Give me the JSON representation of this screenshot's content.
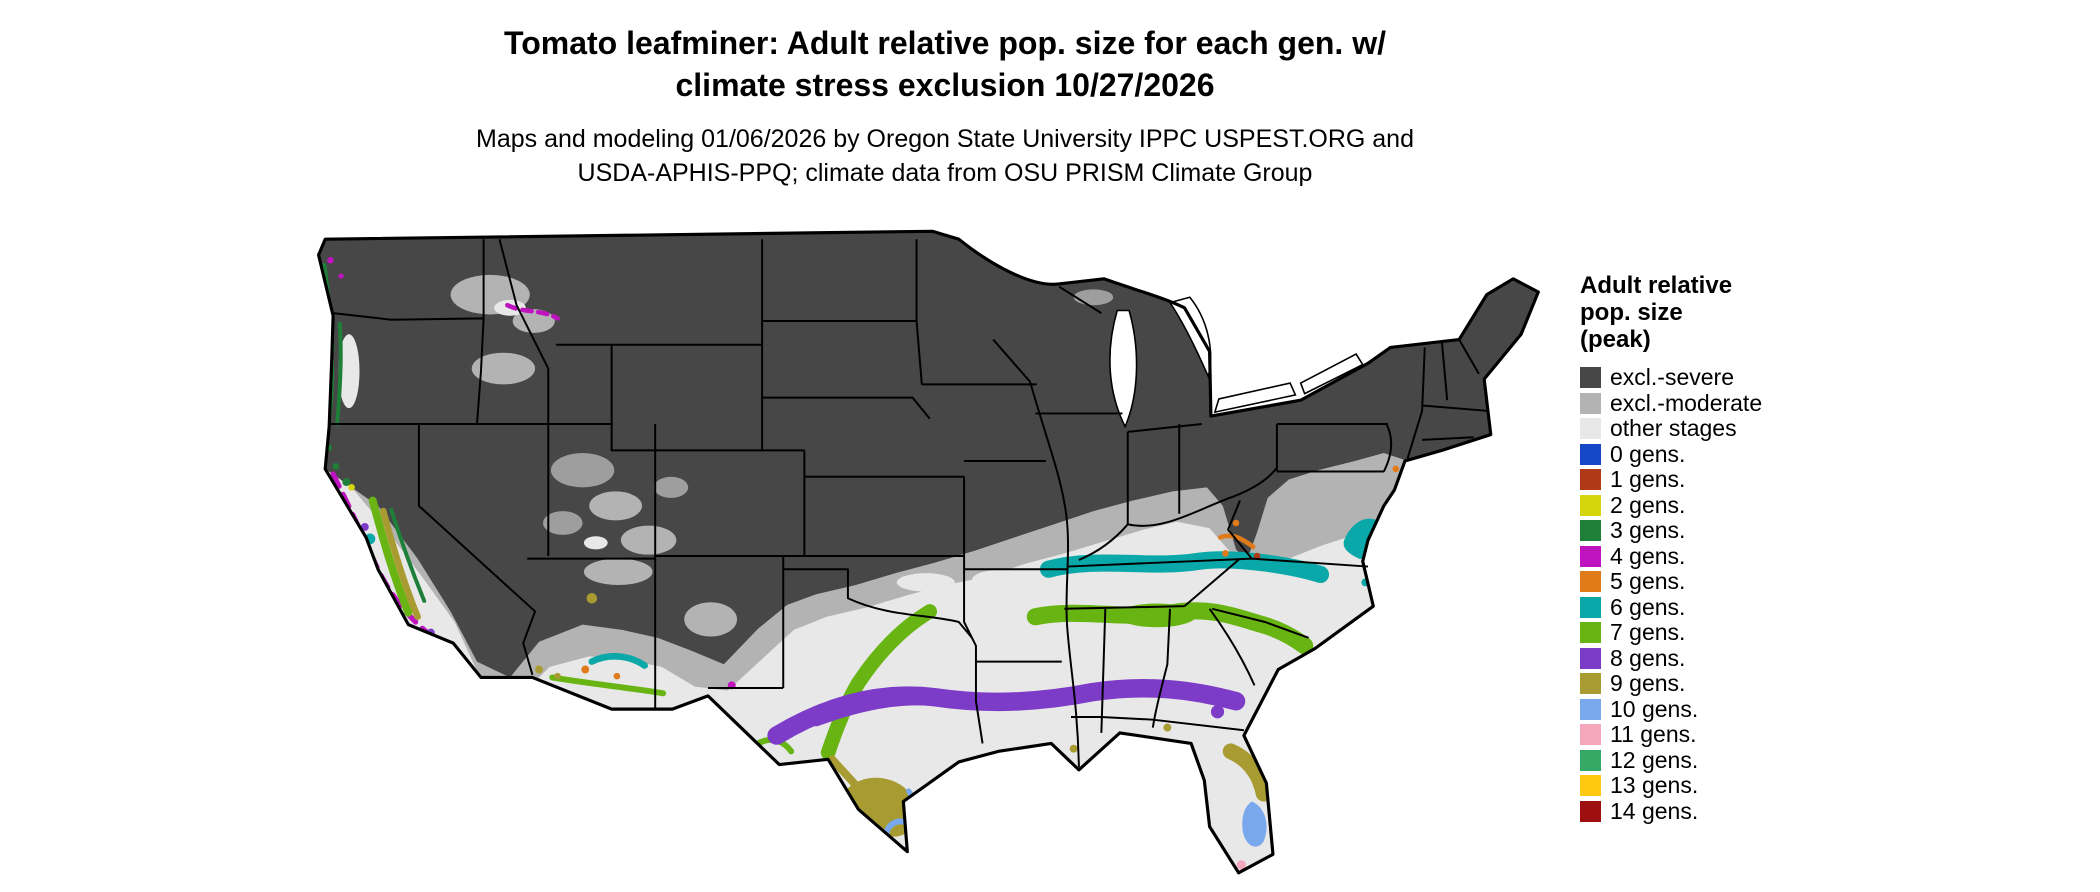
{
  "header": {
    "title_line1": "Tomato leafminer: Adult relative pop. size for each gen. w/",
    "title_line2": "climate stress exclusion 10/27/2026",
    "subtitle_line1": "Maps and modeling 01/06/2026 by Oregon State University IPPC USPEST.ORG and",
    "subtitle_line2": "USDA-APHIS-PPQ; climate data from OSU PRISM Climate Group"
  },
  "legend": {
    "title_line1": "Adult relative",
    "title_line2": "pop. size",
    "title_line3": "(peak)",
    "items": [
      {
        "key": "exclsevere",
        "label": "excl.-severe",
        "color": "#474747"
      },
      {
        "key": "exclmoderate",
        "label": "excl.-moderate",
        "color": "#b3b3b3"
      },
      {
        "key": "other",
        "label": "other stages",
        "color": "#e8e8e8"
      },
      {
        "key": "gen0",
        "label": "0 gens.",
        "color": "#1547c8"
      },
      {
        "key": "gen1",
        "label": "1 gens.",
        "color": "#b03a17"
      },
      {
        "key": "gen2",
        "label": "2 gens.",
        "color": "#d6d60e"
      },
      {
        "key": "gen3",
        "label": "3 gens.",
        "color": "#1e8038"
      },
      {
        "key": "gen4",
        "label": "4 gens.",
        "color": "#c013c0"
      },
      {
        "key": "gen5",
        "label": "5 gens.",
        "color": "#e07b1a"
      },
      {
        "key": "gen6",
        "label": "6 gens.",
        "color": "#0aa8a8"
      },
      {
        "key": "gen7",
        "label": "7 gens.",
        "color": "#67b412"
      },
      {
        "key": "gen8",
        "label": "8 gens.",
        "color": "#7d3cc8"
      },
      {
        "key": "gen9",
        "label": "9 gens.",
        "color": "#a89b31"
      },
      {
        "key": "gen10",
        "label": "10 gens.",
        "color": "#79a9ec"
      },
      {
        "key": "gen11",
        "label": "11 gens.",
        "color": "#f4a6bb"
      },
      {
        "key": "gen12",
        "label": "12 gens.",
        "color": "#35a865"
      },
      {
        "key": "gen13",
        "label": "13 gens.",
        "color": "#fdc80d"
      },
      {
        "key": "gen14",
        "label": "14 gens.",
        "color": "#9e1010"
      }
    ]
  }
}
